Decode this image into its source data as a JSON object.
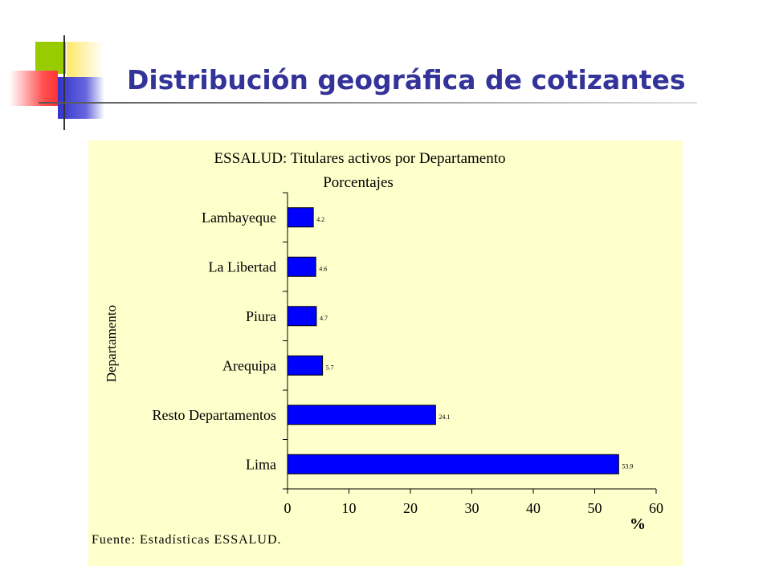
{
  "slide": {
    "title": "Distribución geográfica de cotizantes"
  },
  "colors": {
    "bar_fill": "#0000ff",
    "panel_bg": "#ffffcc",
    "title_color": "#333399"
  },
  "chart_data": {
    "type": "bar",
    "orientation": "horizontal",
    "title": "ESSALUD: Titulares activos por Departamento",
    "subtitle": "Porcentajes",
    "categories": [
      "Lambayeque",
      "La Libertad",
      "Piura",
      "Arequipa",
      "Resto Departamentos",
      "Lima"
    ],
    "values": [
      4.2,
      4.6,
      4.7,
      5.7,
      24.1,
      53.9
    ],
    "data_labels": [
      "4.2",
      "4.6",
      "4.7",
      "5.7",
      "24.1",
      "53.9"
    ],
    "xlabel": "%",
    "ylabel": "Departamento",
    "xlim": [
      0,
      60
    ],
    "x_ticks": [
      0,
      10,
      20,
      30,
      40,
      50,
      60
    ],
    "grid": false,
    "legend": "none",
    "source": "Fuente: Estadísticas ESSALUD."
  }
}
